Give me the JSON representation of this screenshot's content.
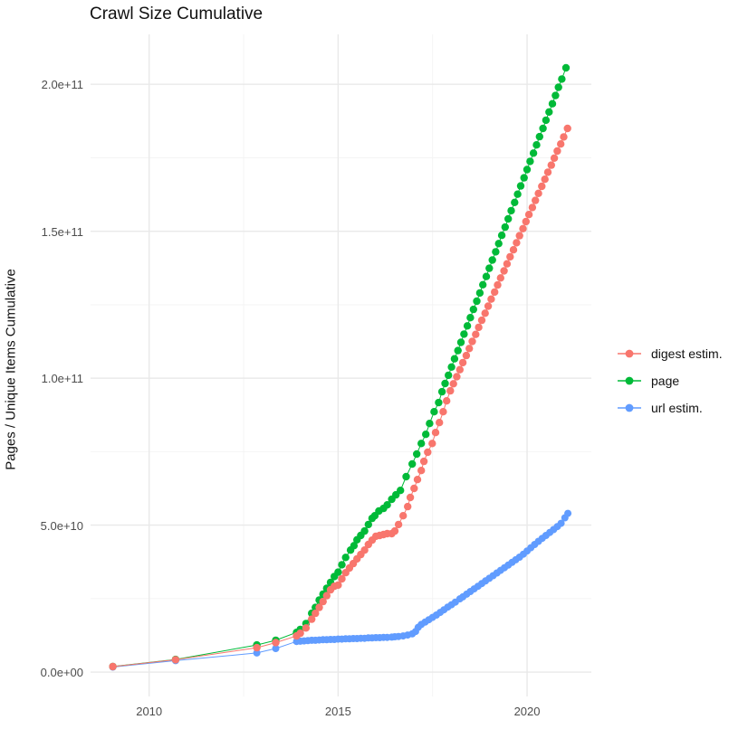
{
  "page": {
    "title": "Crawl Size Cumulative"
  },
  "chart_data": {
    "type": "line",
    "title": "Crawl Size Cumulative",
    "xlabel": "",
    "ylabel": "Pages / Unique Items Cumulative",
    "legend_position": "right",
    "grid": true,
    "value_unit": 1000000000.0,
    "x_domain": [
      2008.45,
      2021.7
    ],
    "y_domain": [
      -8.3,
      217
    ],
    "x_ticks": [
      {
        "value": 2010,
        "label": "2010"
      },
      {
        "value": 2015,
        "label": "2015"
      },
      {
        "value": 2020,
        "label": "2020"
      }
    ],
    "x_minor": [
      2012.5,
      2017.5
    ],
    "y_ticks": [
      {
        "value": 0,
        "label": "0.0e+00"
      },
      {
        "value": 50,
        "label": "5.0e+10"
      },
      {
        "value": 100,
        "label": "1.0e+11"
      },
      {
        "value": 150,
        "label": "1.5e+11"
      },
      {
        "value": 200,
        "label": "2.0e+11"
      }
    ],
    "y_minor": [
      25,
      75,
      125,
      175
    ],
    "series": [
      {
        "name": "digest estim.",
        "color": "#F8766D",
        "dot_radius": 4.2,
        "points": [
          [
            2009.04,
            1.85
          ],
          [
            2010.7,
            4.2
          ],
          [
            2012.85,
            8.3
          ],
          [
            2013.35,
            10
          ],
          [
            2013.9,
            12.3
          ],
          [
            2014.0,
            13.2
          ],
          [
            2014.15,
            15
          ],
          [
            2014.3,
            18
          ],
          [
            2014.4,
            20
          ],
          [
            2014.5,
            22
          ],
          [
            2014.6,
            24
          ],
          [
            2014.7,
            26
          ],
          [
            2014.8,
            28
          ],
          [
            2014.9,
            29.2
          ],
          [
            2015.0,
            29.6
          ],
          [
            2015.1,
            31.7
          ],
          [
            2015.2,
            33.8
          ],
          [
            2015.3,
            35.4
          ],
          [
            2015.4,
            36.9
          ],
          [
            2015.5,
            38.5
          ],
          [
            2015.6,
            40
          ],
          [
            2015.7,
            41.5
          ],
          [
            2015.8,
            43.4
          ],
          [
            2015.9,
            44.9
          ],
          [
            2016.0,
            46.2
          ],
          [
            2016.1,
            46.5
          ],
          [
            2016.2,
            46.8
          ],
          [
            2016.3,
            47.1
          ],
          [
            2016.42,
            47.1
          ],
          [
            2016.5,
            48
          ],
          [
            2016.6,
            50.2
          ],
          [
            2016.72,
            53.2
          ],
          [
            2016.84,
            56.3
          ],
          [
            2016.91,
            59.4
          ],
          [
            2017.01,
            62.5
          ],
          [
            2017.1,
            65.5
          ],
          [
            2017.2,
            68.6
          ],
          [
            2017.27,
            71.7
          ],
          [
            2017.37,
            74.8
          ],
          [
            2017.49,
            77.8
          ],
          [
            2017.58,
            81.5
          ],
          [
            2017.68,
            84.9
          ],
          [
            2017.78,
            88.6
          ],
          [
            2017.87,
            92.3
          ],
          [
            2017.97,
            95.7
          ],
          [
            2018.05,
            98.1
          ],
          [
            2018.14,
            100.5
          ],
          [
            2018.22,
            102.9
          ],
          [
            2018.3,
            105.3
          ],
          [
            2018.39,
            107.7
          ],
          [
            2018.47,
            110.1
          ],
          [
            2018.55,
            112.5
          ],
          [
            2018.64,
            114.9
          ],
          [
            2018.72,
            117.3
          ],
          [
            2018.8,
            119.7
          ],
          [
            2018.89,
            122.1
          ],
          [
            2018.97,
            124.5
          ],
          [
            2019.05,
            126.9
          ],
          [
            2019.14,
            129.3
          ],
          [
            2019.22,
            131.7
          ],
          [
            2019.3,
            134.1
          ],
          [
            2019.39,
            136.5
          ],
          [
            2019.47,
            138.9
          ],
          [
            2019.55,
            141.3
          ],
          [
            2019.64,
            143.7
          ],
          [
            2019.72,
            146.1
          ],
          [
            2019.8,
            148.5
          ],
          [
            2019.89,
            150.9
          ],
          [
            2019.97,
            153.3
          ],
          [
            2020.05,
            155.7
          ],
          [
            2020.14,
            158.1
          ],
          [
            2020.22,
            160.5
          ],
          [
            2020.3,
            162.9
          ],
          [
            2020.39,
            165.3
          ],
          [
            2020.47,
            167.7
          ],
          [
            2020.55,
            170.1
          ],
          [
            2020.64,
            172.5
          ],
          [
            2020.72,
            174.9
          ],
          [
            2020.8,
            177.3
          ],
          [
            2020.89,
            179.7
          ],
          [
            2020.97,
            182.1
          ],
          [
            2021.07,
            185
          ]
        ]
      },
      {
        "name": "page",
        "color": "#00BA38",
        "dot_radius": 4.2,
        "points": [
          [
            2009.04,
            1.9
          ],
          [
            2010.7,
            4.3
          ],
          [
            2012.85,
            9.2
          ],
          [
            2013.35,
            10.8
          ],
          [
            2013.9,
            13.5
          ],
          [
            2014.0,
            14.5
          ],
          [
            2014.15,
            16.5
          ],
          [
            2014.3,
            20
          ],
          [
            2014.4,
            22
          ],
          [
            2014.5,
            24.5
          ],
          [
            2014.6,
            26.5
          ],
          [
            2014.7,
            28.5
          ],
          [
            2014.8,
            30.5
          ],
          [
            2014.9,
            32.5
          ],
          [
            2015.0,
            34
          ],
          [
            2015.1,
            36.5
          ],
          [
            2015.2,
            39
          ],
          [
            2015.33,
            41.5
          ],
          [
            2015.42,
            43
          ],
          [
            2015.5,
            45
          ],
          [
            2015.6,
            46.5
          ],
          [
            2015.7,
            48
          ],
          [
            2015.8,
            50.2
          ],
          [
            2015.9,
            52.3
          ],
          [
            2015.97,
            53.2
          ],
          [
            2016.08,
            54.8
          ],
          [
            2016.2,
            55.7
          ],
          [
            2016.3,
            56.9
          ],
          [
            2016.42,
            58.8
          ],
          [
            2016.53,
            60.3
          ],
          [
            2016.65,
            61.8
          ],
          [
            2016.8,
            66.5
          ],
          [
            2016.96,
            70.8
          ],
          [
            2017.08,
            74.2
          ],
          [
            2017.2,
            77.8
          ],
          [
            2017.32,
            80.9
          ],
          [
            2017.42,
            84.6
          ],
          [
            2017.54,
            88.6
          ],
          [
            2017.66,
            91.7
          ],
          [
            2017.75,
            95.4
          ],
          [
            2017.83,
            98.2
          ],
          [
            2017.92,
            101
          ],
          [
            2018.0,
            103.8
          ],
          [
            2018.08,
            106.6
          ],
          [
            2018.17,
            109.4
          ],
          [
            2018.25,
            112.2
          ],
          [
            2018.33,
            115
          ],
          [
            2018.42,
            117.8
          ],
          [
            2018.5,
            120.6
          ],
          [
            2018.58,
            123.4
          ],
          [
            2018.67,
            126.2
          ],
          [
            2018.75,
            129
          ],
          [
            2018.83,
            131.8
          ],
          [
            2018.92,
            134.6
          ],
          [
            2019.0,
            137.4
          ],
          [
            2019.08,
            140.2
          ],
          [
            2019.17,
            143
          ],
          [
            2019.25,
            145.8
          ],
          [
            2019.33,
            148.6
          ],
          [
            2019.42,
            151.4
          ],
          [
            2019.5,
            154.2
          ],
          [
            2019.58,
            157
          ],
          [
            2019.67,
            159.8
          ],
          [
            2019.75,
            162.6
          ],
          [
            2019.83,
            165.4
          ],
          [
            2019.92,
            168.2
          ],
          [
            2020.0,
            171
          ],
          [
            2020.08,
            173.8
          ],
          [
            2020.17,
            176.6
          ],
          [
            2020.25,
            179.4
          ],
          [
            2020.33,
            182.2
          ],
          [
            2020.42,
            185
          ],
          [
            2020.5,
            187.8
          ],
          [
            2020.58,
            190.6
          ],
          [
            2020.67,
            193.4
          ],
          [
            2020.75,
            196.2
          ],
          [
            2020.83,
            199
          ],
          [
            2020.92,
            201.8
          ],
          [
            2021.03,
            205.6
          ]
        ]
      },
      {
        "name": "url estim.",
        "color": "#619CFF",
        "dot_radius": 4.0,
        "points": [
          [
            2009.04,
            1.7
          ],
          [
            2010.7,
            3.9
          ],
          [
            2012.85,
            6.5
          ],
          [
            2013.35,
            8
          ],
          [
            2013.9,
            10.4
          ],
          [
            2014.0,
            10.5
          ],
          [
            2014.1,
            10.6
          ],
          [
            2014.2,
            10.7
          ],
          [
            2014.3,
            10.8
          ],
          [
            2014.4,
            10.8
          ],
          [
            2014.5,
            10.9
          ],
          [
            2014.6,
            11
          ],
          [
            2014.7,
            11
          ],
          [
            2014.8,
            11.1
          ],
          [
            2014.9,
            11.1
          ],
          [
            2015.0,
            11.2
          ],
          [
            2015.1,
            11.2
          ],
          [
            2015.2,
            11.3
          ],
          [
            2015.3,
            11.3
          ],
          [
            2015.4,
            11.4
          ],
          [
            2015.5,
            11.4
          ],
          [
            2015.6,
            11.5
          ],
          [
            2015.7,
            11.5
          ],
          [
            2015.8,
            11.6
          ],
          [
            2015.9,
            11.6
          ],
          [
            2016.0,
            11.7
          ],
          [
            2016.1,
            11.7
          ],
          [
            2016.2,
            11.8
          ],
          [
            2016.3,
            11.8
          ],
          [
            2016.42,
            11.9
          ],
          [
            2016.5,
            12
          ],
          [
            2016.6,
            12.1
          ],
          [
            2016.72,
            12.3
          ],
          [
            2016.84,
            12.6
          ],
          [
            2016.96,
            13
          ],
          [
            2017.05,
            13.8
          ],
          [
            2017.12,
            15.2
          ],
          [
            2017.2,
            16.2
          ],
          [
            2017.3,
            17
          ],
          [
            2017.4,
            17.8
          ],
          [
            2017.5,
            18.6
          ],
          [
            2017.6,
            19.4
          ],
          [
            2017.7,
            20.3
          ],
          [
            2017.8,
            21.2
          ],
          [
            2017.9,
            22.1
          ],
          [
            2018.0,
            22.9
          ],
          [
            2018.1,
            23.8
          ],
          [
            2018.22,
            24.9
          ],
          [
            2018.3,
            25.6
          ],
          [
            2018.4,
            26.5
          ],
          [
            2018.5,
            27.4
          ],
          [
            2018.6,
            28.3
          ],
          [
            2018.7,
            29.2
          ],
          [
            2018.8,
            30.1
          ],
          [
            2018.9,
            31
          ],
          [
            2019.0,
            31.9
          ],
          [
            2019.1,
            32.8
          ],
          [
            2019.2,
            33.7
          ],
          [
            2019.3,
            34.6
          ],
          [
            2019.4,
            35.5
          ],
          [
            2019.5,
            36.4
          ],
          [
            2019.6,
            37.3
          ],
          [
            2019.7,
            38.2
          ],
          [
            2019.8,
            39.1
          ],
          [
            2019.9,
            40.1
          ],
          [
            2020.0,
            41.2
          ],
          [
            2020.1,
            42.3
          ],
          [
            2020.2,
            43.4
          ],
          [
            2020.3,
            44.5
          ],
          [
            2020.4,
            45.5
          ],
          [
            2020.5,
            46.5
          ],
          [
            2020.6,
            47.5
          ],
          [
            2020.7,
            48.5
          ],
          [
            2020.8,
            49.5
          ],
          [
            2020.9,
            50.6
          ],
          [
            2021.0,
            52.5
          ],
          [
            2021.08,
            54
          ]
        ]
      }
    ],
    "colors": {
      "digest_estim": "#F8766D",
      "page": "#00BA38",
      "url_estim": "#619CFF",
      "grid_major": "#e9e9e9",
      "grid_minor": "#f3f3f3",
      "axis_text": "#4d4d4d"
    }
  }
}
